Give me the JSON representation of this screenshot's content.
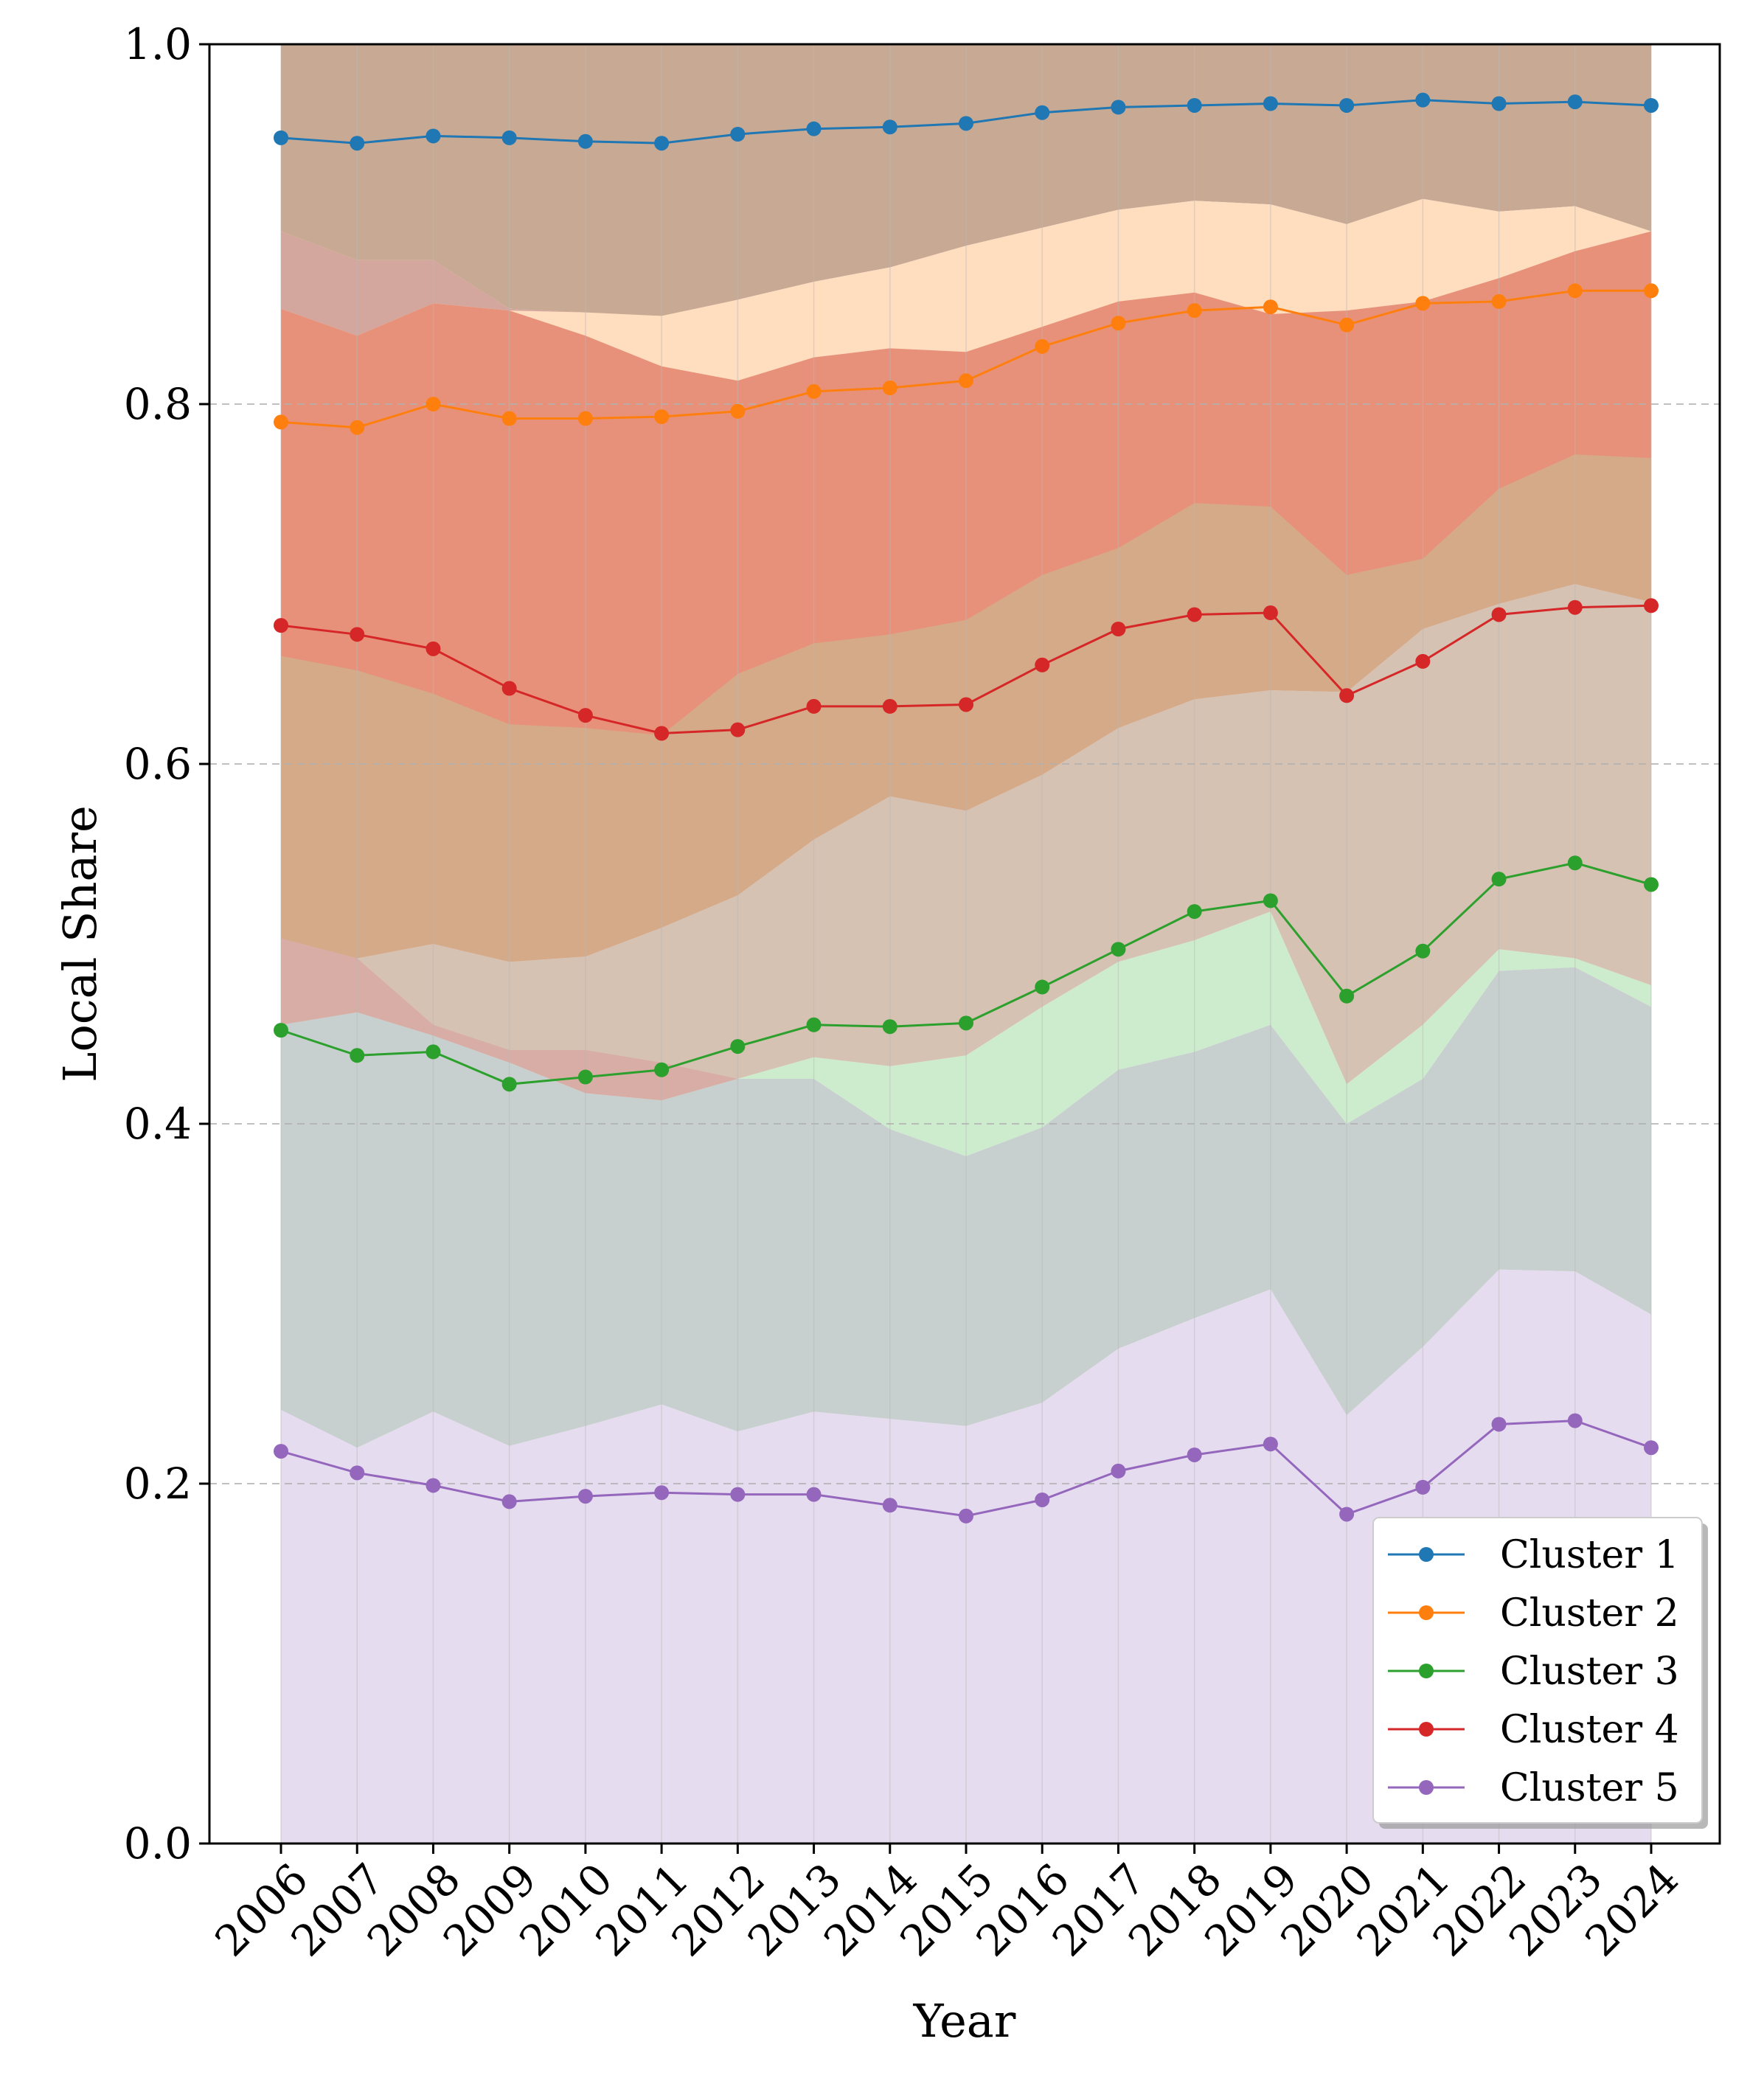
{
  "chart_data": {
    "type": "line",
    "title": "",
    "xlabel": "Year",
    "ylabel": "Local Share",
    "ylim": [
      0,
      1
    ],
    "yticks": [
      "0.0",
      "0.2",
      "0.4",
      "0.6",
      "0.8",
      "1.0"
    ],
    "x": [
      "2006",
      "2007",
      "2008",
      "2009",
      "2010",
      "2011",
      "2012",
      "2013",
      "2014",
      "2015",
      "2016",
      "2017",
      "2018",
      "2019",
      "2020",
      "2021",
      "2022",
      "2023",
      "2024"
    ],
    "grid": "y-dashed, x-vertical-faint",
    "legend_position": "lower-right",
    "series": [
      {
        "name": "Cluster 1",
        "color": "#1f77b4",
        "band_color": "#c8aa94",
        "values": [
          0.948,
          0.945,
          0.949,
          0.948,
          0.946,
          0.945,
          0.95,
          0.953,
          0.954,
          0.956,
          0.962,
          0.965,
          0.966,
          0.967,
          0.966,
          0.969,
          0.967,
          0.968,
          0.966
        ],
        "band_lower": [
          0.852,
          0.838,
          0.855,
          0.853,
          0.85,
          0.848,
          0.858,
          0.868,
          0.876,
          0.888,
          0.898,
          0.908,
          0.913,
          0.911,
          0.9,
          0.914,
          0.907,
          0.91,
          0.896
        ],
        "band_upper": [
          1,
          1,
          1,
          1,
          1,
          1,
          1,
          1,
          1,
          1,
          1,
          1,
          1,
          1,
          1,
          1,
          1,
          1,
          1
        ]
      },
      {
        "name": "Cluster 2",
        "color": "#ff7f0e",
        "band_color": "#ffddbf",
        "values": [
          0.79,
          0.787,
          0.8,
          0.792,
          0.792,
          0.793,
          0.796,
          0.807,
          0.809,
          0.813,
          0.832,
          0.845,
          0.852,
          0.854,
          0.844,
          0.856,
          0.857,
          0.863,
          0.863
        ],
        "band_lower": [
          0.66,
          0.652,
          0.639,
          0.622,
          0.62,
          0.616,
          0.65,
          0.667,
          0.672,
          0.68,
          0.705,
          0.72,
          0.745,
          0.743,
          0.705,
          0.714,
          0.753,
          0.772,
          0.77
        ],
        "band_upper": [
          0.896,
          0.88,
          0.88,
          0.853,
          0.851,
          0.849,
          0.858,
          0.868,
          0.876,
          0.888,
          0.898,
          0.908,
          0.913,
          0.911,
          0.9,
          0.914,
          0.907,
          0.91,
          0.896
        ]
      },
      {
        "name": "Cluster 3",
        "color": "#2ca02c",
        "band_color": "#cdeccd",
        "values": [
          0.452,
          0.438,
          0.44,
          0.422,
          0.426,
          0.43,
          0.443,
          0.455,
          0.454,
          0.456,
          0.476,
          0.497,
          0.518,
          0.524,
          0.471,
          0.496,
          0.536,
          0.545,
          0.533
        ],
        "band_lower": [
          0.455,
          0.462,
          0.449,
          0.434,
          0.417,
          0.413,
          0.425,
          0.425,
          0.397,
          0.382,
          0.398,
          0.43,
          0.44,
          0.455,
          0.4,
          0.425,
          0.485,
          0.487,
          0.465
        ],
        "band_upper": [
          0.455,
          0.462,
          0.449,
          0.434,
          0.425,
          0.425,
          0.425,
          0.437,
          0.432,
          0.438,
          0.465,
          0.49,
          0.502,
          0.518,
          0.422,
          0.455,
          0.497,
          0.492,
          0.477
        ]
      },
      {
        "name": "Cluster 4",
        "color": "#d62728",
        "band_color": "#e8917a",
        "values": [
          0.677,
          0.672,
          0.664,
          0.642,
          0.627,
          0.617,
          0.619,
          0.632,
          0.632,
          0.633,
          0.655,
          0.675,
          0.683,
          0.684,
          0.638,
          0.657,
          0.683,
          0.687,
          0.688
        ],
        "band_lower": [
          0.503,
          0.492,
          0.5,
          0.49,
          0.493,
          0.509,
          0.527,
          0.558,
          0.582,
          0.574,
          0.594,
          0.62,
          0.636,
          0.641,
          0.64,
          0.675,
          0.689,
          0.7,
          0.69
        ],
        "band_upper": [
          0.853,
          0.838,
          0.856,
          0.852,
          0.838,
          0.821,
          0.813,
          0.826,
          0.831,
          0.829,
          0.843,
          0.857,
          0.862,
          0.85,
          0.852,
          0.857,
          0.87,
          0.885,
          0.896
        ]
      },
      {
        "name": "Cluster 5",
        "color": "#9467bd",
        "band_color": "#e6dcef",
        "values": [
          0.218,
          0.206,
          0.199,
          0.19,
          0.193,
          0.195,
          0.194,
          0.194,
          0.188,
          0.182,
          0.191,
          0.207,
          0.216,
          0.222,
          0.183,
          0.198,
          0.233,
          0.235,
          0.22
        ],
        "band_lower": [
          0,
          0,
          0,
          0,
          0,
          0,
          0,
          0,
          0,
          0,
          0,
          0,
          0,
          0,
          0,
          0,
          0,
          0,
          0
        ],
        "band_upper": [
          0.241,
          0.22,
          0.24,
          0.221,
          0.232,
          0.244,
          0.229,
          0.24,
          0.236,
          0.232,
          0.245,
          0.275,
          0.292,
          0.308,
          0.238,
          0.276,
          0.319,
          0.318,
          0.294
        ]
      }
    ],
    "extra_bands": [
      {
        "color": "#c7d0ce",
        "lower": [
          0.241,
          0.22,
          0.24,
          0.221,
          0.232,
          0.244,
          0.229,
          0.24,
          0.236,
          0.232,
          0.245,
          0.275,
          0.292,
          0.308,
          0.238,
          0.276,
          0.319,
          0.318,
          0.294
        ],
        "upper": [
          0.455,
          0.462,
          0.449,
          0.434,
          0.417,
          0.413,
          0.425,
          0.425,
          0.397,
          0.382,
          0.398,
          0.43,
          0.44,
          0.455,
          0.4,
          0.425,
          0.485,
          0.487,
          0.465
        ]
      },
      {
        "color": "#d6c2b3",
        "lower": [
          0.455,
          0.462,
          0.449,
          0.434,
          0.425,
          0.425,
          0.425,
          0.437,
          0.432,
          0.438,
          0.465,
          0.49,
          0.502,
          0.518,
          0.422,
          0.455,
          0.497,
          0.492,
          0.477
        ],
        "upper": [
          0.503,
          0.492,
          0.5,
          0.49,
          0.493,
          0.509,
          0.527,
          0.558,
          0.582,
          0.574,
          0.594,
          0.62,
          0.636,
          0.641,
          0.64,
          0.675,
          0.689,
          0.7,
          0.69
        ]
      },
      {
        "color": "#d5aa88",
        "lower": [
          0.503,
          0.492,
          0.5,
          0.49,
          0.493,
          0.509,
          0.527,
          0.558,
          0.582,
          0.574,
          0.594,
          0.62,
          0.636,
          0.641,
          0.64,
          0.675,
          0.689,
          0.7,
          0.69
        ],
        "upper": [
          0.66,
          0.652,
          0.639,
          0.622,
          0.62,
          0.616,
          0.65,
          0.667,
          0.672,
          0.68,
          0.705,
          0.72,
          0.745,
          0.743,
          0.705,
          0.714,
          0.753,
          0.772,
          0.77
        ]
      },
      {
        "color": "#d4a79e",
        "lower": [
          0.853,
          0.838,
          0.856,
          0.852,
          0.851,
          0.849,
          0.858,
          0.868,
          0.876,
          0.888,
          0.898,
          0.908,
          0.913,
          0.911,
          0.9,
          0.914,
          0.907,
          0.91,
          0.896
        ],
        "upper": [
          0.896,
          0.88,
          0.88,
          0.853,
          0.851,
          0.849,
          0.858,
          0.868,
          0.876,
          0.888,
          0.898,
          0.908,
          0.913,
          0.911,
          0.9,
          0.914,
          0.907,
          0.91,
          0.896
        ]
      },
      {
        "color": "#d7ada6",
        "lower": [
          0.455,
          0.462,
          0.449,
          0.434,
          0.417,
          0.413,
          0.425,
          0.425,
          0.425,
          0.425,
          0.425,
          0.425,
          0.425,
          0.425,
          0.425,
          0.425,
          0.425,
          0.425,
          0.425
        ],
        "upper": [
          0.503,
          0.492,
          0.455,
          0.441,
          0.441,
          0.434,
          0.425,
          0.425,
          0.425,
          0.425,
          0.425,
          0.425,
          0.425,
          0.425,
          0.425,
          0.425,
          0.425,
          0.425,
          0.425
        ]
      }
    ]
  }
}
